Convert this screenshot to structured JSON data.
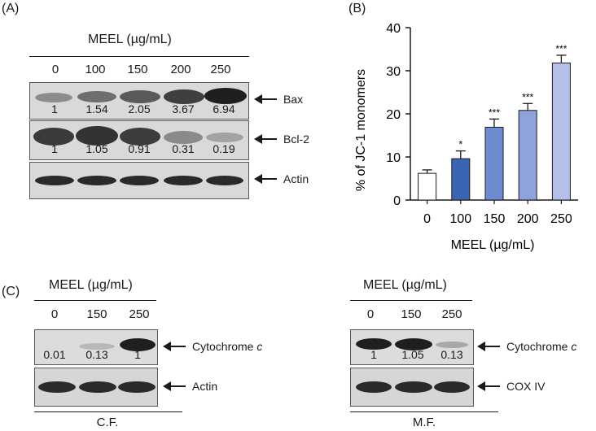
{
  "panel_a": {
    "label": "(A)",
    "header": "MEEL (µg/mL)",
    "lanes": [
      "0",
      "100",
      "150",
      "200",
      "250"
    ],
    "blots": [
      {
        "name": "Bax",
        "quant": [
          "1",
          "1.54",
          "2.05",
          "3.67",
          "6.94"
        ]
      },
      {
        "name": "Bcl-2",
        "quant": [
          "1",
          "1.05",
          "0.91",
          "0.31",
          "0.19"
        ]
      },
      {
        "name": "Actin",
        "quant": []
      }
    ]
  },
  "panel_b": {
    "label": "(B)",
    "chart_data": {
      "type": "bar",
      "categories": [
        "0",
        "100",
        "150",
        "200",
        "250"
      ],
      "values": [
        6.2,
        9.6,
        16.9,
        20.8,
        31.8
      ],
      "errors": [
        0.8,
        1.8,
        1.9,
        1.6,
        1.8
      ],
      "significance": [
        "",
        "*",
        "***",
        "***",
        "***"
      ],
      "colors": [
        "#ffffff",
        "#3b64b3",
        "#6f8bd0",
        "#8ea3dc",
        "#b4c0e9"
      ],
      "xlabel": "MEEL (µg/mL)",
      "ylabel": "% of JC-1 monomers",
      "ylim": [
        0,
        40
      ],
      "yticks": [
        "0",
        "10",
        "20",
        "30",
        "40"
      ],
      "grid": false
    }
  },
  "panel_c": {
    "label": "(C)",
    "left": {
      "header": "MEEL (µg/mL)",
      "lanes": [
        "0",
        "150",
        "250"
      ],
      "blots": [
        {
          "name": "Cytochrome",
          "name_italic": "c",
          "quant": [
            "0.01",
            "0.13",
            "1"
          ]
        },
        {
          "name": "Actin",
          "name_italic": "",
          "quant": []
        }
      ],
      "fraction": "C.F."
    },
    "right": {
      "header": "MEEL (µg/mL)",
      "lanes": [
        "0",
        "150",
        "250"
      ],
      "blots": [
        {
          "name": "Cytochrome",
          "name_italic": "c",
          "quant": [
            "1",
            "1.05",
            "0.13"
          ]
        },
        {
          "name": "COX IV",
          "name_italic": "",
          "quant": []
        }
      ],
      "fraction": "M.F."
    }
  }
}
